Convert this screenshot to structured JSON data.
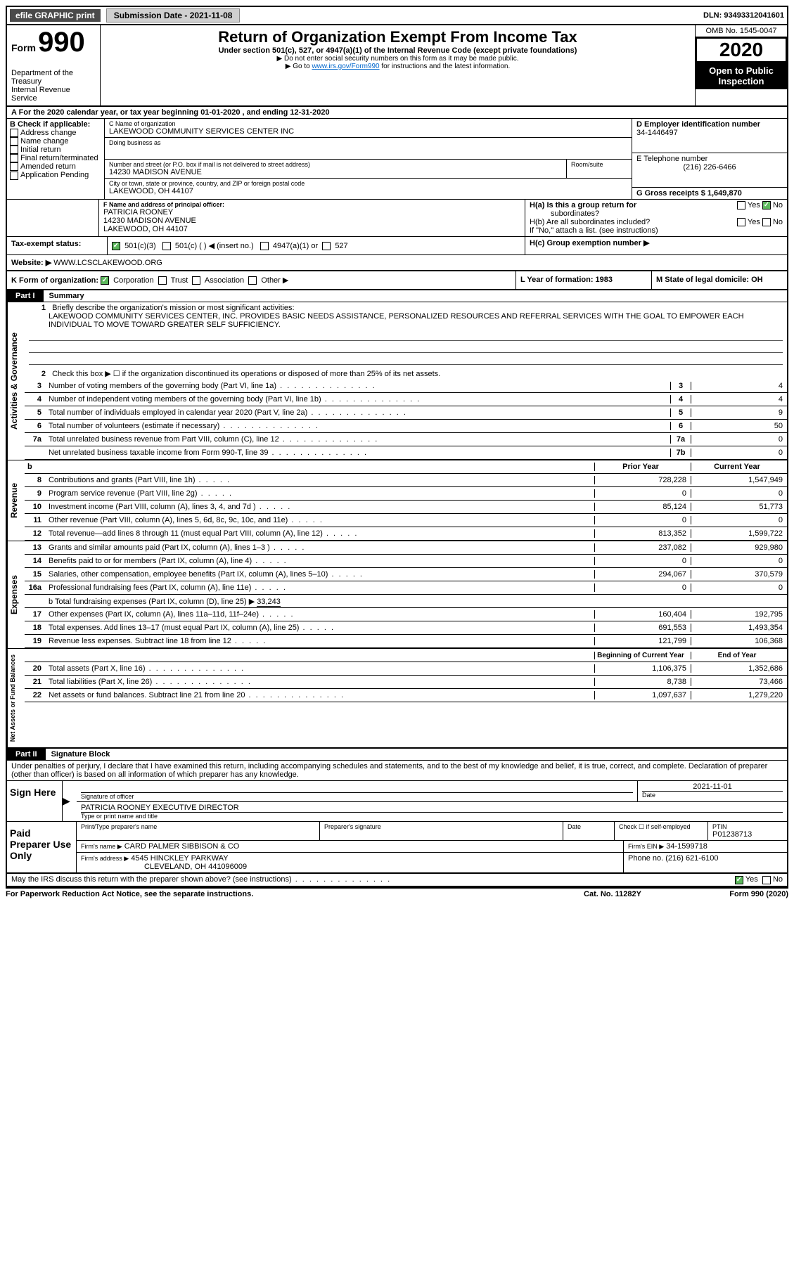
{
  "header": {
    "efile_label": "efile GRAPHIC print",
    "submission_label": "Submission Date - 2021-11-08",
    "dln_label": "DLN: 93493312041601",
    "form_label": "Form",
    "form_number": "990",
    "title": "Return of Organization Exempt From Income Tax",
    "subtitle": "Under section 501(c), 527, or 4947(a)(1) of the Internal Revenue Code (except private foundations)",
    "info1": "▶ Do not enter social security numbers on this form as it may be made public.",
    "info2_pre": "▶ Go to ",
    "info2_link": "www.irs.gov/Form990",
    "info2_post": " for instructions and the latest information.",
    "dept": "Department of the Treasury",
    "irs": "Internal Revenue Service",
    "omb": "OMB No. 1545-0047",
    "year": "2020",
    "open_public": "Open to Public Inspection"
  },
  "sectionA": {
    "line": "A    For the 2020 calendar year, or tax year beginning 01-01-2020    , and ending 12-31-2020",
    "b_label": "B Check if applicable:",
    "b_opts": [
      "Address change",
      "Name change",
      "Initial return",
      "Final return/terminated",
      "Amended return",
      "Application Pending"
    ],
    "c_label": "C Name of organization",
    "c_name": "LAKEWOOD COMMUNITY SERVICES CENTER INC",
    "dba_label": "Doing business as",
    "addr_label": "Number and street (or P.O. box if mail is not delivered to street address)",
    "room_label": "Room/suite",
    "addr": "14230 MADISON AVENUE",
    "city_label": "City or town, state or province, country, and ZIP or foreign postal code",
    "city": "LAKEWOOD, OH  44107",
    "d_label": "D Employer identification number",
    "d_val": "34-1446497",
    "e_label": "E Telephone number",
    "e_val": "(216) 226-6466",
    "g_label": "G Gross receipts $ 1,649,870",
    "f_label": "F  Name and address of principal officer:",
    "f_name": "PATRICIA ROONEY",
    "f_addr1": "14230 MADISON AVENUE",
    "f_addr2": "LAKEWOOD, OH  44107",
    "ha_label": "H(a)  Is this a group return for",
    "ha_sub": "subordinates?",
    "hb_label": "H(b)  Are all subordinates included?",
    "hb_note": "If \"No,\" attach a list. (see instructions)",
    "hc_label": "H(c)  Group exemption number ▶",
    "tax_exempt": "Tax-exempt status:",
    "te_501c3": "501(c)(3)",
    "te_501c": "501(c) (  ) ◀ (insert no.)",
    "te_4947": "4947(a)(1) or",
    "te_527": "527",
    "j_label": "Website: ▶",
    "j_val": " WWW.LCSCLAKEWOOD.ORG",
    "k_label": "K Form of organization:",
    "k_opts": [
      "Corporation",
      "Trust",
      "Association",
      "Other ▶"
    ],
    "l_label": "L Year of formation: 1983",
    "m_label": "M State of legal domicile: OH",
    "yes": "Yes",
    "no": "No"
  },
  "part1": {
    "label": "Part I",
    "title": "Summary",
    "l1_label": "Briefly describe the organization's mission or most significant activities:",
    "l1_text": "LAKEWOOD COMMUNITY SERVICES CENTER, INC. PROVIDES BASIC NEEDS ASSISTANCE, PERSONALIZED RESOURCES AND REFERRAL SERVICES WITH THE GOAL TO EMPOWER EACH INDIVIDUAL TO MOVE TOWARD GREATER SELF SUFFICIENCY.",
    "l2": "Check this box ▶ ☐  if the organization discontinued its operations or disposed of more than 25% of its net assets.",
    "vert_gov": "Activities & Governance",
    "vert_rev": "Revenue",
    "vert_exp": "Expenses",
    "vert_net": "Net Assets or Fund Balances",
    "lines_gov": [
      {
        "n": "3",
        "t": "Number of voting members of the governing body (Part VI, line 1a)",
        "box": "3",
        "v": "4"
      },
      {
        "n": "4",
        "t": "Number of independent voting members of the governing body (Part VI, line 1b)",
        "box": "4",
        "v": "4"
      },
      {
        "n": "5",
        "t": "Total number of individuals employed in calendar year 2020 (Part V, line 2a)",
        "box": "5",
        "v": "9"
      },
      {
        "n": "6",
        "t": "Total number of volunteers (estimate if necessary)",
        "box": "6",
        "v": "50"
      },
      {
        "n": "7a",
        "t": "Total unrelated business revenue from Part VIII, column (C), line 12",
        "box": "7a",
        "v": "0"
      },
      {
        "n": "",
        "t": "Net unrelated business taxable income from Form 990-T, line 39",
        "box": "7b",
        "v": "0"
      }
    ],
    "col_b": "b",
    "prior_year": "Prior Year",
    "current_year": "Current Year",
    "lines_rev": [
      {
        "n": "8",
        "t": "Contributions and grants (Part VIII, line 1h)",
        "py": "728,228",
        "cy": "1,547,949"
      },
      {
        "n": "9",
        "t": "Program service revenue (Part VIII, line 2g)",
        "py": "0",
        "cy": "0"
      },
      {
        "n": "10",
        "t": "Investment income (Part VIII, column (A), lines 3, 4, and 7d )",
        "py": "85,124",
        "cy": "51,773"
      },
      {
        "n": "11",
        "t": "Other revenue (Part VIII, column (A), lines 5, 6d, 8c, 9c, 10c, and 11e)",
        "py": "0",
        "cy": "0"
      },
      {
        "n": "12",
        "t": "Total revenue—add lines 8 through 11 (must equal Part VIII, column (A), line 12)",
        "py": "813,352",
        "cy": "1,599,722"
      }
    ],
    "lines_exp": [
      {
        "n": "13",
        "t": "Grants and similar amounts paid (Part IX, column (A), lines 1–3 )",
        "py": "237,082",
        "cy": "929,980"
      },
      {
        "n": "14",
        "t": "Benefits paid to or for members (Part IX, column (A), line 4)",
        "py": "0",
        "cy": "0"
      },
      {
        "n": "15",
        "t": "Salaries, other compensation, employee benefits (Part IX, column (A), lines 5–10)",
        "py": "294,067",
        "cy": "370,579"
      },
      {
        "n": "16a",
        "t": "Professional fundraising fees (Part IX, column (A), line 11e)",
        "py": "0",
        "cy": "0"
      }
    ],
    "l16b_pre": "b  Total fundraising expenses (Part IX, column (D), line 25) ▶",
    "l16b_val": "33,243",
    "lines_exp2": [
      {
        "n": "17",
        "t": "Other expenses (Part IX, column (A), lines 11a–11d, 11f–24e)",
        "py": "160,404",
        "cy": "192,795"
      },
      {
        "n": "18",
        "t": "Total expenses. Add lines 13–17 (must equal Part IX, column (A), line 25)",
        "py": "691,553",
        "cy": "1,493,354"
      },
      {
        "n": "19",
        "t": "Revenue less expenses. Subtract line 18 from line 12",
        "py": "121,799",
        "cy": "106,368"
      }
    ],
    "beg_year": "Beginning of Current Year",
    "end_year": "End of Year",
    "lines_net": [
      {
        "n": "20",
        "t": "Total assets (Part X, line 16)",
        "py": "1,106,375",
        "cy": "1,352,686"
      },
      {
        "n": "21",
        "t": "Total liabilities (Part X, line 26)",
        "py": "8,738",
        "cy": "73,466"
      },
      {
        "n": "22",
        "t": "Net assets or fund balances. Subtract line 21 from line 20",
        "py": "1,097,637",
        "cy": "1,279,220"
      }
    ]
  },
  "part2": {
    "label": "Part II",
    "title": "Signature Block",
    "declaration": "Under penalties of perjury, I declare that I have examined this return, including accompanying schedules and statements, and to the best of my knowledge and belief, it is true, correct, and complete. Declaration of preparer (other than officer) is based on all information of which preparer has any knowledge.",
    "sign_here": "Sign Here",
    "sig_officer": "Signature of officer",
    "date_label": "Date",
    "date_val": "2021-11-01",
    "officer_name": "PATRICIA ROONEY  EXECUTIVE DIRECTOR",
    "type_label": "Type or print name and title",
    "paid": "Paid Preparer Use Only",
    "prep_name_label": "Print/Type preparer's name",
    "prep_sig_label": "Preparer's signature",
    "check_self": "Check ☐  if self-employed",
    "ptin_label": "PTIN",
    "ptin": "P01238713",
    "firm_name_label": "Firm's name    ▶",
    "firm_name": "CARD PALMER SIBBISON & CO",
    "firm_ein_label": "Firm's EIN ▶",
    "firm_ein": "34-1599718",
    "firm_addr_label": "Firm's address ▶",
    "firm_addr1": "4545 HINCKLEY PARKWAY",
    "firm_addr2": "CLEVELAND, OH  441096009",
    "phone_label": "Phone no. (216) 621-6100",
    "discuss": "May the IRS discuss this return with the preparer shown above? (see instructions)",
    "paperwork": "For Paperwork Reduction Act Notice, see the separate instructions.",
    "cat": "Cat. No. 11282Y",
    "form_footer": "Form 990 (2020)"
  }
}
